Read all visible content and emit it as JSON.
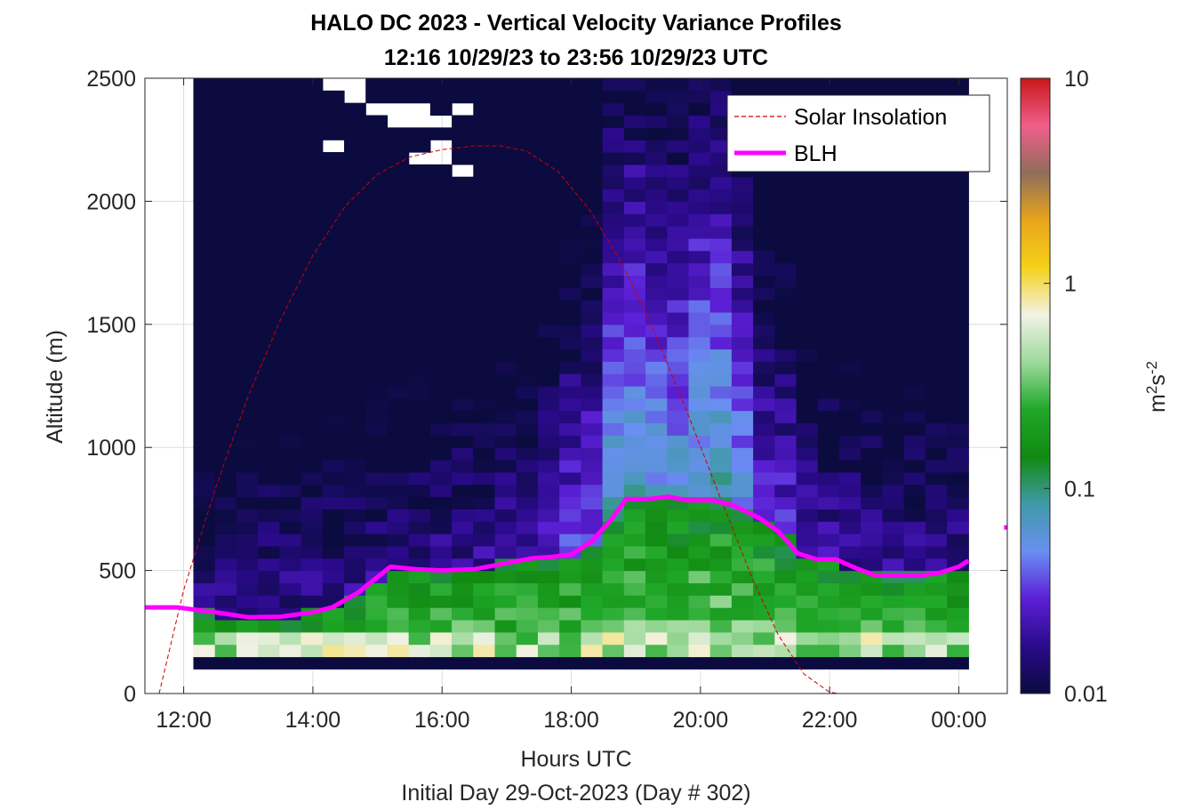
{
  "chart_data": {
    "type": "heatmap",
    "title": "HALO DC 2023 - Vertical Velocity Variance Profiles",
    "subtitle": "12:16 10/29/23 to 23:56 10/29/23  UTC",
    "xlabel": "Hours UTC",
    "xlabel2": "Initial Day 29-Oct-2023 (Day # 302)",
    "ylabel": "Altitude (m)",
    "xlim": [
      11.4,
      24.75
    ],
    "ylim": [
      0,
      2500
    ],
    "x_ticks": [
      12,
      14,
      16,
      18,
      20,
      22,
      24
    ],
    "x_tick_labels": [
      "12:00",
      "14:00",
      "16:00",
      "18:00",
      "20:00",
      "22:00",
      "00:00"
    ],
    "y_ticks": [
      0,
      500,
      1000,
      1500,
      2000,
      2500
    ],
    "y_tick_labels": [
      "0",
      "500",
      "1000",
      "1500",
      "2000",
      "2500"
    ],
    "colorbar": {
      "label": "m²s⁻²",
      "label_base": "m",
      "label_exp1": "2",
      "label_mid": "s",
      "label_exp2": "-2",
      "scale": "log",
      "range": [
        0.01,
        10
      ],
      "ticks": [
        0.01,
        0.1,
        1,
        10
      ],
      "tick_labels": [
        "0.01",
        "0.1",
        "1",
        "10"
      ]
    },
    "grid": true,
    "legend_position": "top-right",
    "series": [
      {
        "name": "Solar Insolation",
        "style": "dashed",
        "color": "#cc0000",
        "x": [
          11.4,
          11.62,
          12.0,
          12.5,
          13.0,
          13.5,
          14.0,
          14.5,
          15.0,
          15.5,
          16.0,
          16.5,
          16.9,
          17.3,
          17.8,
          18.3,
          18.8,
          19.3,
          19.8,
          20.3,
          20.8,
          21.2,
          21.6,
          22.0,
          22.15,
          24.75
        ],
        "y": [
          0,
          0,
          420,
          840,
          1210,
          1520,
          1780,
          1980,
          2110,
          2180,
          2210,
          2225,
          2225,
          2205,
          2120,
          1960,
          1740,
          1460,
          1140,
          800,
          470,
          240,
          80,
          5,
          0,
          0
        ]
      },
      {
        "name": "BLH",
        "style": "solid",
        "color": "#ff00ff",
        "x": [
          11.4,
          11.9,
          12.5,
          13.0,
          13.5,
          14.0,
          14.3,
          14.7,
          15.2,
          15.6,
          16.0,
          16.5,
          17.0,
          17.4,
          17.7,
          18.0,
          18.3,
          18.6,
          18.85,
          19.2,
          19.5,
          19.8,
          20.2,
          20.5,
          20.9,
          21.2,
          21.5,
          21.8,
          22.1,
          22.4,
          22.7,
          23.0,
          23.4,
          23.7,
          24.0,
          24.15
        ],
        "y": [
          350,
          350,
          330,
          310,
          312,
          330,
          350,
          410,
          515,
          505,
          500,
          505,
          530,
          550,
          555,
          565,
          615,
          700,
          790,
          790,
          800,
          785,
          785,
          765,
          715,
          660,
          570,
          545,
          545,
          510,
          480,
          480,
          480,
          490,
          515,
          540
        ]
      },
      {
        "name": "",
        "style": "solid",
        "color": "#ff00ff",
        "x": [
          24.7,
          24.75
        ],
        "y": [
          675,
          675
        ]
      }
    ],
    "heatmap": {
      "x_start": 12.15,
      "x_step": 0.3333,
      "n_cols": 36,
      "y_start": 100,
      "y_step": 50,
      "n_rows": 48,
      "colormap_stops": [
        "#0b0b40",
        "#2a0a8a",
        "#5c1fd6",
        "#6a8ff2",
        "#3f9aa8",
        "#128a12",
        "#20a82a",
        "#9cd99a",
        "#f2f2e6",
        "#f5d21a",
        "#e8a51c",
        "#8f6d5a",
        "#f05e8a",
        "#c81818"
      ],
      "profile_note": ""
    }
  }
}
